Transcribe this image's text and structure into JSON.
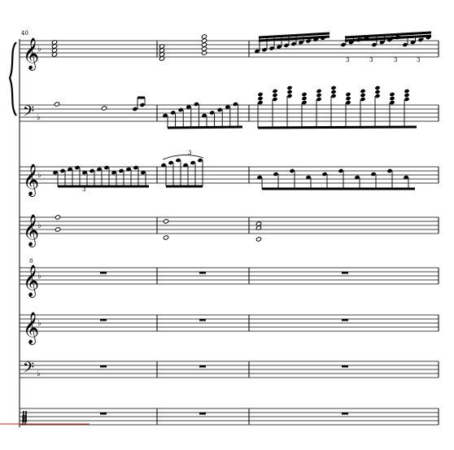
{
  "measure_number": "40",
  "tuplet_labels": [
    "3",
    "3",
    "3",
    "3",
    "3",
    "3"
  ],
  "octave_mark": "8",
  "clefs": {
    "treble": "𝄞",
    "bass": "𝄢",
    "percussion": "𝄥"
  },
  "accidentals": {
    "flat": "♭"
  },
  "rest_symbol": "𝄻",
  "colors": {
    "ink": "#000000",
    "paper": "#ffffff",
    "marker": "#cc2222"
  },
  "systems": [
    {
      "name": "piano-right-hand",
      "clef": "treble",
      "key": "flat"
    },
    {
      "name": "piano-left-hand",
      "clef": "bass",
      "key": "flat"
    },
    {
      "name": "melody-staff",
      "clef": "treble",
      "key": "flat"
    },
    {
      "name": "chord-staff",
      "clef": "treble",
      "key": "flat"
    },
    {
      "name": "octave-treble-staff",
      "clef": "treble-8",
      "key": "flat"
    },
    {
      "name": "treble-staff-rests",
      "clef": "treble",
      "key": "flat"
    },
    {
      "name": "bass-staff-rests",
      "clef": "bass",
      "key": "flat"
    },
    {
      "name": "percussion-staff",
      "clef": "percussion",
      "key": "none"
    }
  ]
}
